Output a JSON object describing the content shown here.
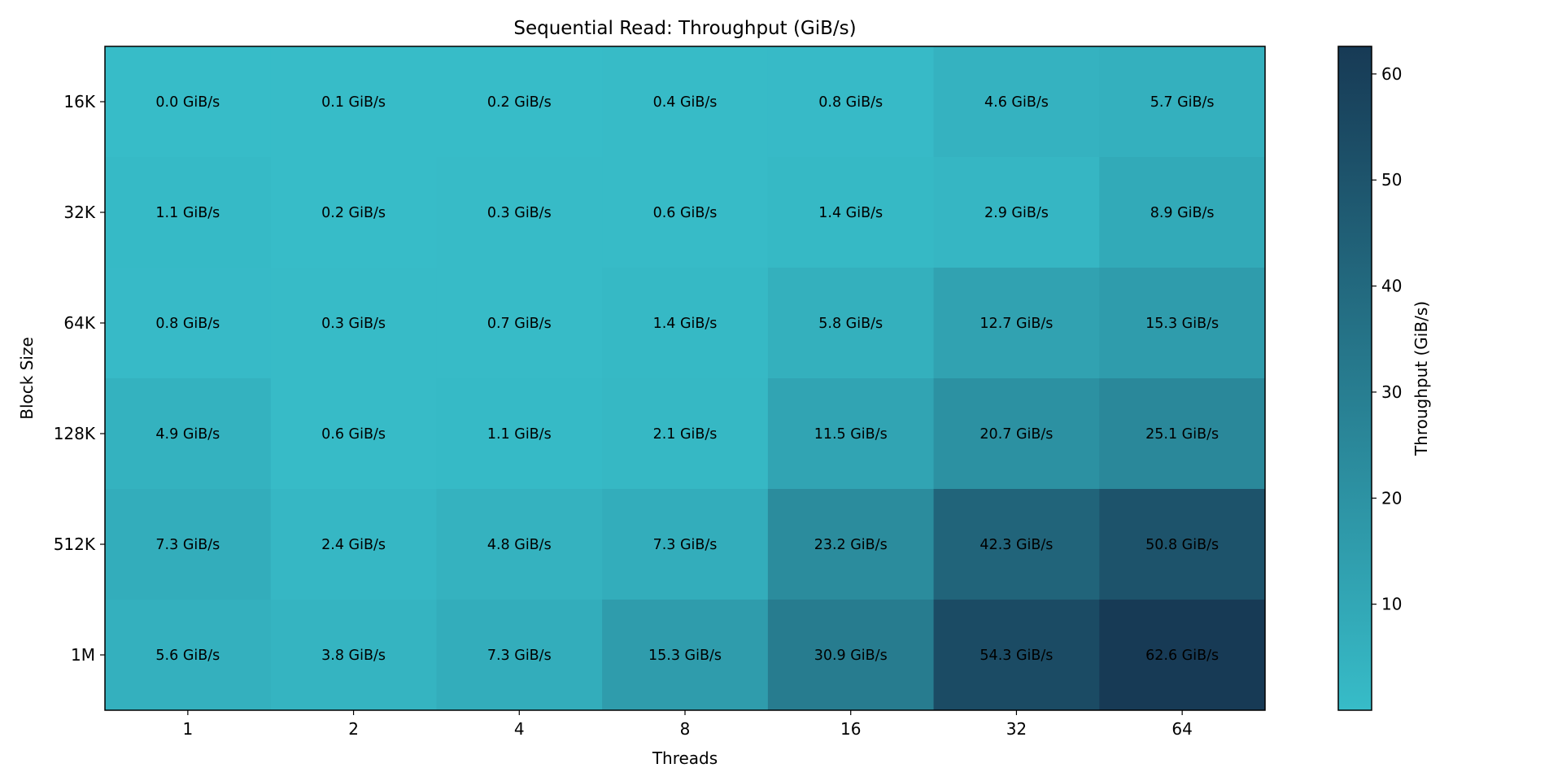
{
  "chart_data": {
    "type": "heatmap",
    "title": "Sequential Read: Throughput (GiB/s)",
    "xlabel": "Threads",
    "ylabel": "Block Size",
    "x_categories": [
      "1",
      "2",
      "4",
      "8",
      "16",
      "32",
      "64"
    ],
    "y_categories": [
      "16K",
      "32K",
      "64K",
      "128K",
      "512K",
      "1M"
    ],
    "values": [
      [
        0.0,
        0.1,
        0.2,
        0.4,
        0.8,
        4.6,
        5.7
      ],
      [
        1.1,
        0.2,
        0.3,
        0.6,
        1.4,
        2.9,
        8.9
      ],
      [
        0.8,
        0.3,
        0.7,
        1.4,
        5.8,
        12.7,
        15.3
      ],
      [
        4.9,
        0.6,
        1.1,
        2.1,
        11.5,
        20.7,
        25.1
      ],
      [
        7.3,
        2.4,
        4.8,
        7.3,
        23.2,
        42.3,
        50.8
      ],
      [
        5.6,
        3.8,
        7.3,
        15.3,
        30.9,
        54.3,
        62.6
      ]
    ],
    "cell_labels": [
      [
        "0.0 GiB/s",
        "0.1 GiB/s",
        "0.2 GiB/s",
        "0.4 GiB/s",
        "0.8 GiB/s",
        "4.6 GiB/s",
        "5.7 GiB/s"
      ],
      [
        "1.1 GiB/s",
        "0.2 GiB/s",
        "0.3 GiB/s",
        "0.6 GiB/s",
        "1.4 GiB/s",
        "2.9 GiB/s",
        "8.9 GiB/s"
      ],
      [
        "0.8 GiB/s",
        "0.3 GiB/s",
        "0.7 GiB/s",
        "1.4 GiB/s",
        "5.8 GiB/s",
        "12.7 GiB/s",
        "15.3 GiB/s"
      ],
      [
        "4.9 GiB/s",
        "0.6 GiB/s",
        "1.1 GiB/s",
        "2.1 GiB/s",
        "11.5 GiB/s",
        "20.7 GiB/s",
        "25.1 GiB/s"
      ],
      [
        "7.3 GiB/s",
        "2.4 GiB/s",
        "4.8 GiB/s",
        "7.3 GiB/s",
        "23.2 GiB/s",
        "42.3 GiB/s",
        "50.8 GiB/s"
      ],
      [
        "5.6 GiB/s",
        "3.8 GiB/s",
        "7.3 GiB/s",
        "15.3 GiB/s",
        "30.9 GiB/s",
        "54.3 GiB/s",
        "62.6 GiB/s"
      ]
    ],
    "colorbar": {
      "label": "Throughput (GiB/s)",
      "ticks": [
        10,
        20,
        30,
        40,
        50,
        60
      ],
      "tick_labels": [
        "10",
        "20",
        "30",
        "40",
        "50",
        "60"
      ],
      "range": [
        0.0,
        62.6
      ],
      "color_low": "#37bcc8",
      "color_high": "#173a55"
    },
    "grid": false
  }
}
